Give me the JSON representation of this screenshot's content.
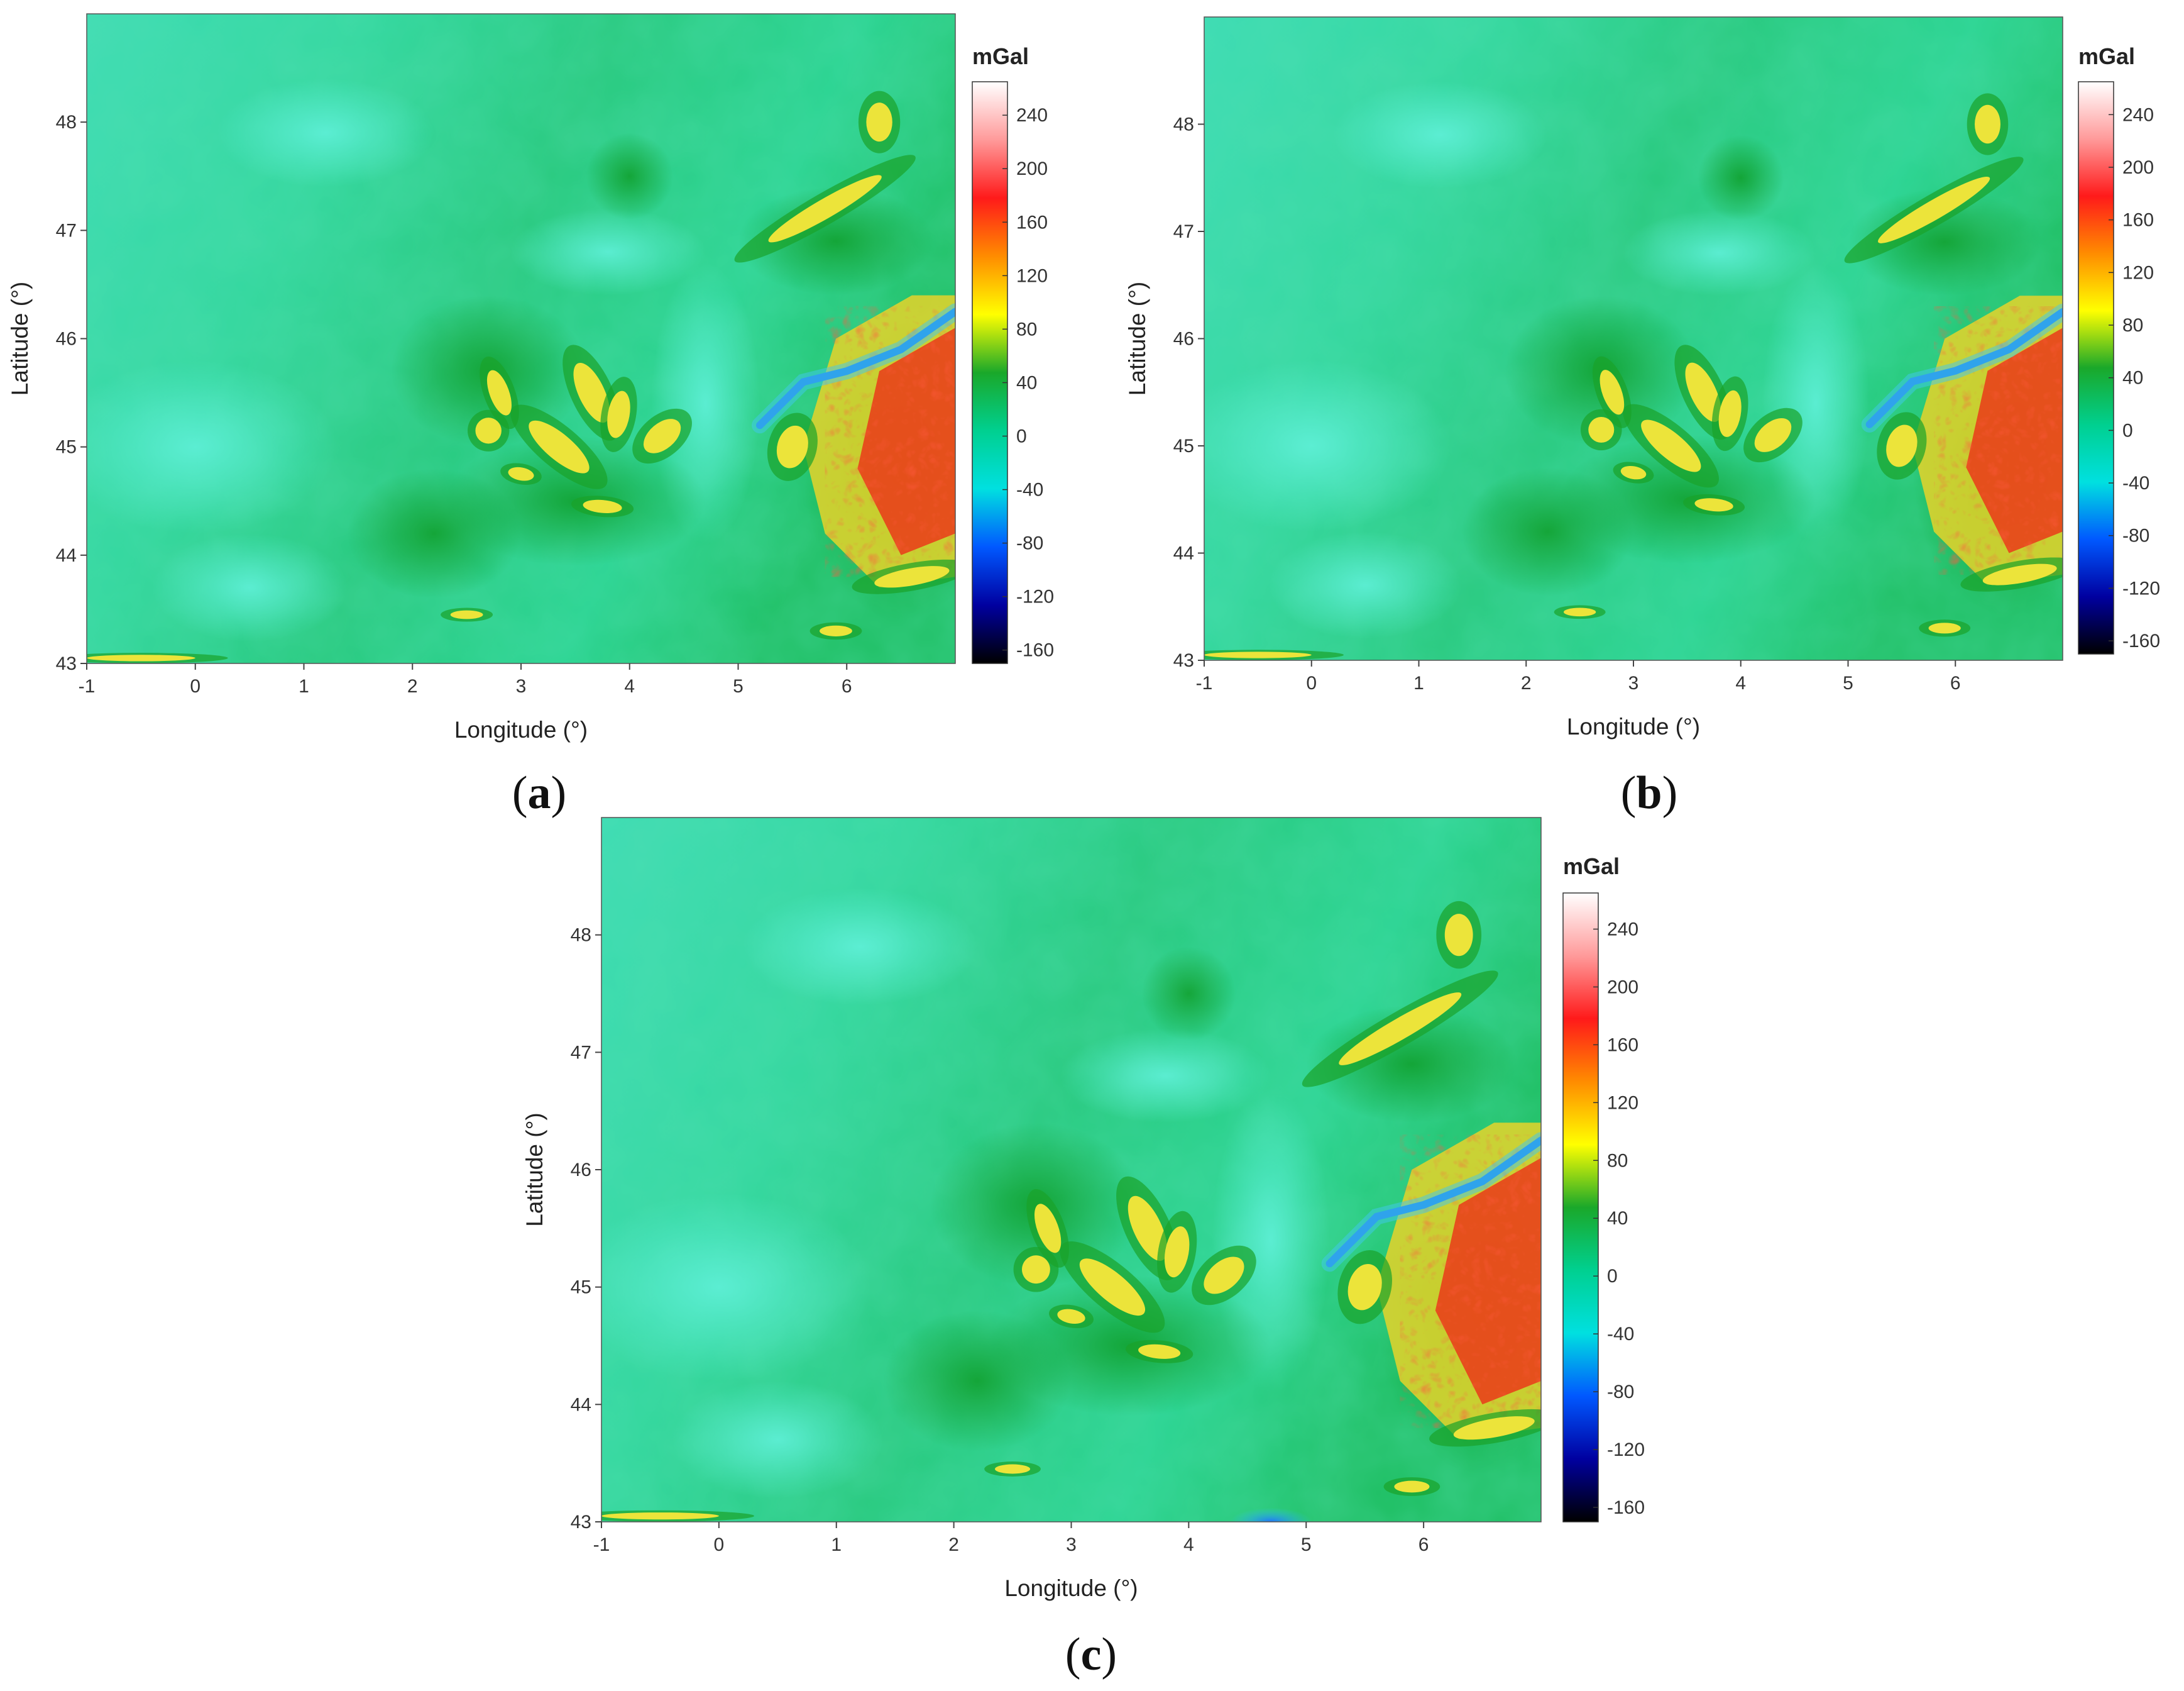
{
  "chart_data": [
    {
      "type": "heatmap",
      "panel_label": {
        "open": "(",
        "letter": "a",
        "close": ")"
      },
      "xlabel": "Longitude (°)",
      "ylabel": "Latitude (°)",
      "xlim": [
        -1,
        7
      ],
      "ylim": [
        43,
        49
      ],
      "xticks": [
        "-1",
        "0",
        "1",
        "2",
        "3",
        "4",
        "5",
        "6"
      ],
      "yticks": [
        "43",
        "44",
        "45",
        "46",
        "47",
        "48"
      ],
      "colorbar": {
        "unit": "mGal",
        "range": [
          -170,
          265
        ],
        "ticks": [
          "240",
          "200",
          "160",
          "120",
          "80",
          "40",
          "0",
          "-40",
          "-80",
          "-120",
          "-160"
        ]
      }
    },
    {
      "type": "heatmap",
      "panel_label": {
        "open": "(",
        "letter": "b",
        "close": ")"
      },
      "xlabel": "Longitude (°)",
      "ylabel": "Latitude (°)",
      "xlim": [
        -1,
        7
      ],
      "ylim": [
        43,
        49
      ],
      "xticks": [
        "-1",
        "0",
        "1",
        "2",
        "3",
        "4",
        "5",
        "6"
      ],
      "yticks": [
        "43",
        "44",
        "45",
        "46",
        "47",
        "48"
      ],
      "colorbar": {
        "unit": "mGal",
        "range": [
          -170,
          265
        ],
        "ticks": [
          "240",
          "200",
          "160",
          "120",
          "80",
          "40",
          "0",
          "-40",
          "-80",
          "-120",
          "-160"
        ]
      }
    },
    {
      "type": "heatmap",
      "panel_label": {
        "open": "(",
        "letter": "c",
        "close": ")"
      },
      "xlabel": "Longitude (°)",
      "ylabel": "Latitude (°)",
      "xlim": [
        -1,
        7
      ],
      "ylim": [
        43,
        49
      ],
      "xticks": [
        "-1",
        "0",
        "1",
        "2",
        "3",
        "4",
        "5",
        "6"
      ],
      "yticks": [
        "43",
        "44",
        "45",
        "46",
        "47",
        "48"
      ],
      "colorbar": {
        "unit": "mGal",
        "range": [
          -170,
          265
        ],
        "ticks": [
          "240",
          "200",
          "160",
          "120",
          "80",
          "40",
          "0",
          "-40",
          "-80",
          "-120",
          "-160"
        ]
      }
    }
  ],
  "colors": {
    "background_field": "#27cf8a",
    "low_field": "#40e2c0",
    "moderate_anomaly": "#17a82a",
    "high_anomaly": "#e8e432",
    "very_high_anomaly": "#f03018",
    "negative_anomaly": "#1e88e8"
  },
  "colorbar_stops": [
    "#ffffff",
    "#ff9a9a",
    "#ff1a1a",
    "#ff8c00",
    "#ffff00",
    "#1aa82a",
    "#00d090",
    "#00e0e0",
    "#0058ff",
    "#0000a0",
    "#000000"
  ]
}
